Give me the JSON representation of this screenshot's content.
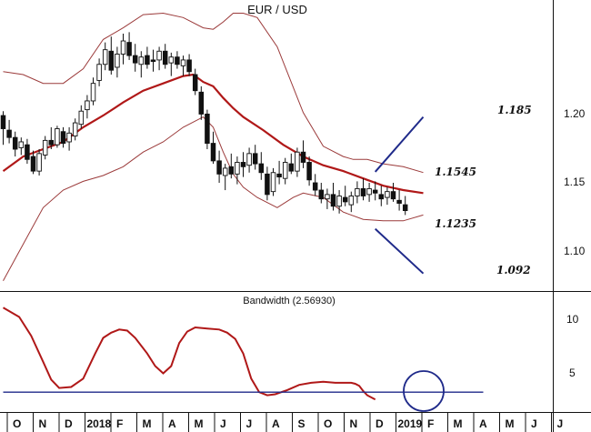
{
  "chart_data": [
    {
      "type": "candlestick",
      "title": "EUR / USD",
      "y_ticks": [
        "1.20",
        "1.15",
        "1.10"
      ],
      "x_ticks": [
        "O",
        "N",
        "D",
        "2018",
        "F",
        "M",
        "A",
        "M",
        "J",
        "J",
        "A",
        "S",
        "O",
        "N",
        "D",
        "2019",
        "F",
        "M",
        "A",
        "M",
        "J",
        "J"
      ],
      "annotations": [
        "1.185",
        "1.1545",
        "1.1235",
        "1.092"
      ],
      "colors": {
        "moving_average": "#b01818",
        "bands": "#9b3a3a",
        "projection": "#1f2a8a",
        "candle": "#111111"
      },
      "ylim": [
        1.078,
        1.277
      ],
      "bands": {
        "upper": [
          [
            0,
            1.228
          ],
          [
            10,
            1.226
          ],
          [
            20,
            1.22
          ],
          [
            30,
            1.22
          ],
          [
            40,
            1.23
          ],
          [
            50,
            1.25
          ],
          [
            60,
            1.258
          ],
          [
            70,
            1.267
          ],
          [
            80,
            1.268
          ],
          [
            90,
            1.265
          ],
          [
            100,
            1.258
          ],
          [
            105,
            1.257
          ],
          [
            110,
            1.262
          ],
          [
            115,
            1.268
          ],
          [
            120,
            1.268
          ],
          [
            127,
            1.265
          ],
          [
            137,
            1.245
          ],
          [
            150,
            1.2
          ],
          [
            160,
            1.177
          ],
          [
            170,
            1.17
          ],
          [
            175,
            1.168
          ],
          [
            182,
            1.168
          ],
          [
            190,
            1.165
          ],
          [
            200,
            1.163
          ],
          [
            210,
            1.159
          ]
        ],
        "lower": [
          [
            0,
            1.085
          ],
          [
            10,
            1.11
          ],
          [
            20,
            1.135
          ],
          [
            30,
            1.147
          ],
          [
            40,
            1.153
          ],
          [
            50,
            1.157
          ],
          [
            60,
            1.163
          ],
          [
            70,
            1.173
          ],
          [
            80,
            1.18
          ],
          [
            90,
            1.19
          ],
          [
            100,
            1.197
          ],
          [
            105,
            1.19
          ],
          [
            110,
            1.173
          ],
          [
            115,
            1.158
          ],
          [
            120,
            1.149
          ],
          [
            127,
            1.142
          ],
          [
            137,
            1.135
          ],
          [
            145,
            1.142
          ],
          [
            150,
            1.145
          ],
          [
            160,
            1.142
          ],
          [
            170,
            1.132
          ],
          [
            180,
            1.127
          ],
          [
            190,
            1.126
          ],
          [
            200,
            1.126
          ],
          [
            210,
            1.13
          ]
        ],
        "middle": [
          [
            0,
            1.16
          ],
          [
            10,
            1.17
          ],
          [
            20,
            1.175
          ],
          [
            30,
            1.18
          ],
          [
            40,
            1.19
          ],
          [
            50,
            1.198
          ],
          [
            60,
            1.207
          ],
          [
            70,
            1.215
          ],
          [
            80,
            1.22
          ],
          [
            90,
            1.225
          ],
          [
            95,
            1.226
          ],
          [
            100,
            1.221
          ],
          [
            105,
            1.218
          ],
          [
            110,
            1.21
          ],
          [
            115,
            1.203
          ],
          [
            120,
            1.197
          ],
          [
            130,
            1.188
          ],
          [
            140,
            1.178
          ],
          [
            150,
            1.17
          ],
          [
            160,
            1.164
          ],
          [
            170,
            1.16
          ],
          [
            180,
            1.155
          ],
          [
            190,
            1.15
          ],
          [
            200,
            1.147
          ],
          [
            210,
            1.145
          ]
        ]
      },
      "candles": [
        [
          0,
          1.198,
          1.201,
          1.178,
          1.189
        ],
        [
          3,
          1.188,
          1.195,
          1.179,
          1.183
        ],
        [
          6,
          1.183,
          1.187,
          1.17,
          1.175
        ],
        [
          9,
          1.176,
          1.183,
          1.171,
          1.18
        ],
        [
          12,
          1.178,
          1.182,
          1.165,
          1.168
        ],
        [
          15,
          1.17,
          1.174,
          1.158,
          1.16
        ],
        [
          18,
          1.16,
          1.175,
          1.157,
          1.172
        ],
        [
          21,
          1.171,
          1.184,
          1.168,
          1.181
        ],
        [
          24,
          1.181,
          1.19,
          1.175,
          1.178
        ],
        [
          27,
          1.178,
          1.191,
          1.176,
          1.189
        ],
        [
          30,
          1.187,
          1.19,
          1.176,
          1.179
        ],
        [
          33,
          1.18,
          1.19,
          1.174,
          1.186
        ],
        [
          36,
          1.184,
          1.196,
          1.181,
          1.193
        ],
        [
          39,
          1.192,
          1.205,
          1.189,
          1.201
        ],
        [
          42,
          1.202,
          1.212,
          1.196,
          1.208
        ],
        [
          45,
          1.208,
          1.224,
          1.205,
          1.22
        ],
        [
          48,
          1.222,
          1.237,
          1.218,
          1.233
        ],
        [
          51,
          1.233,
          1.248,
          1.229,
          1.243
        ],
        [
          54,
          1.242,
          1.252,
          1.226,
          1.229
        ],
        [
          57,
          1.231,
          1.245,
          1.224,
          1.24
        ],
        [
          60,
          1.24,
          1.254,
          1.233,
          1.249
        ],
        [
          63,
          1.248,
          1.255,
          1.236,
          1.239
        ],
        [
          66,
          1.239,
          1.247,
          1.228,
          1.234
        ],
        [
          69,
          1.233,
          1.242,
          1.224,
          1.238
        ],
        [
          72,
          1.239,
          1.245,
          1.23,
          1.233
        ],
        [
          75,
          1.236,
          1.243,
          1.228,
          1.235
        ],
        [
          78,
          1.236,
          1.245,
          1.229,
          1.242
        ],
        [
          81,
          1.242,
          1.247,
          1.23,
          1.233
        ],
        [
          84,
          1.234,
          1.241,
          1.225,
          1.238
        ],
        [
          87,
          1.238,
          1.242,
          1.23,
          1.233
        ],
        [
          90,
          1.232,
          1.239,
          1.225,
          1.236
        ],
        [
          93,
          1.236,
          1.24,
          1.225,
          1.228
        ],
        [
          96,
          1.226,
          1.23,
          1.212,
          1.215
        ],
        [
          99,
          1.214,
          1.218,
          1.195,
          1.199
        ],
        [
          102,
          1.199,
          1.202,
          1.175,
          1.179
        ],
        [
          105,
          1.179,
          1.187,
          1.165,
          1.167
        ],
        [
          108,
          1.167,
          1.174,
          1.152,
          1.158
        ],
        [
          111,
          1.157,
          1.165,
          1.147,
          1.162
        ],
        [
          114,
          1.163,
          1.172,
          1.155,
          1.158
        ],
        [
          117,
          1.158,
          1.17,
          1.151,
          1.166
        ],
        [
          120,
          1.166,
          1.173,
          1.156,
          1.163
        ],
        [
          123,
          1.164,
          1.176,
          1.159,
          1.172
        ],
        [
          126,
          1.172,
          1.178,
          1.161,
          1.165
        ],
        [
          129,
          1.165,
          1.173,
          1.154,
          1.159
        ],
        [
          132,
          1.158,
          1.163,
          1.14,
          1.144
        ],
        [
          135,
          1.146,
          1.162,
          1.143,
          1.159
        ],
        [
          138,
          1.158,
          1.167,
          1.151,
          1.156
        ],
        [
          141,
          1.155,
          1.169,
          1.151,
          1.166
        ],
        [
          144,
          1.165,
          1.172,
          1.158,
          1.16
        ],
        [
          147,
          1.16,
          1.176,
          1.156,
          1.173
        ],
        [
          150,
          1.173,
          1.181,
          1.162,
          1.166
        ],
        [
          153,
          1.166,
          1.17,
          1.15,
          1.154
        ],
        [
          156,
          1.152,
          1.158,
          1.143,
          1.147
        ],
        [
          159,
          1.147,
          1.152,
          1.138,
          1.141
        ],
        [
          162,
          1.141,
          1.148,
          1.134,
          1.144
        ],
        [
          165,
          1.144,
          1.152,
          1.133,
          1.136
        ],
        [
          168,
          1.136,
          1.147,
          1.131,
          1.143
        ],
        [
          171,
          1.142,
          1.15,
          1.136,
          1.139
        ],
        [
          174,
          1.137,
          1.146,
          1.132,
          1.143
        ],
        [
          177,
          1.143,
          1.153,
          1.138,
          1.148
        ],
        [
          180,
          1.148,
          1.155,
          1.14,
          1.143
        ],
        [
          183,
          1.144,
          1.152,
          1.139,
          1.148
        ],
        [
          186,
          1.147,
          1.153,
          1.14,
          1.145
        ],
        [
          189,
          1.144,
          1.15,
          1.136,
          1.141
        ],
        [
          192,
          1.142,
          1.149,
          1.137,
          1.146
        ],
        [
          195,
          1.146,
          1.152,
          1.139,
          1.141
        ],
        [
          198,
          1.14,
          1.147,
          1.133,
          1.138
        ],
        [
          201,
          1.137,
          1.143,
          1.13,
          1.133
        ]
      ],
      "projection_lines": [
        [
          [
            186,
            1.1595
          ],
          [
            210,
            1.197
          ]
        ],
        [
          [
            186,
            1.1205
          ],
          [
            210,
            1.09
          ]
        ]
      ]
    },
    {
      "type": "line",
      "title": "Bandwidth (2.56930)",
      "y_ticks": [
        "10",
        "5"
      ],
      "ylim": [
        1.4,
        12.9
      ],
      "series": [
        {
          "color": "#b01818",
          "values": [
            [
              0,
              11.4
            ],
            [
              8,
              10.5
            ],
            [
              14,
              8.7
            ],
            [
              20,
              6.2
            ],
            [
              24,
              4.5
            ],
            [
              28,
              3.7
            ],
            [
              34,
              3.8
            ],
            [
              40,
              4.6
            ],
            [
              46,
              7.0
            ],
            [
              50,
              8.5
            ],
            [
              54,
              9.0
            ],
            [
              58,
              9.3
            ],
            [
              62,
              9.2
            ],
            [
              66,
              8.5
            ],
            [
              72,
              7.0
            ],
            [
              76,
              5.8
            ],
            [
              80,
              5.1
            ],
            [
              84,
              5.8
            ],
            [
              88,
              8.0
            ],
            [
              92,
              9.1
            ],
            [
              96,
              9.5
            ],
            [
              102,
              9.4
            ],
            [
              108,
              9.3
            ],
            [
              112,
              9.0
            ],
            [
              116,
              8.4
            ],
            [
              120,
              7.0
            ],
            [
              124,
              4.6
            ],
            [
              128,
              3.3
            ],
            [
              132,
              3.0
            ],
            [
              136,
              3.1
            ],
            [
              142,
              3.5
            ],
            [
              148,
              4.0
            ],
            [
              154,
              4.2
            ],
            [
              160,
              4.3
            ],
            [
              166,
              4.2
            ],
            [
              170,
              4.2
            ],
            [
              174,
              4.2
            ],
            [
              176,
              4.1
            ],
            [
              178,
              3.9
            ],
            [
              180,
              3.4
            ],
            [
              182,
              3.0
            ],
            [
              186,
              2.6
            ]
          ]
        },
        {
          "color": "#1f2a8a",
          "values": [
            [
              0,
              3.3
            ],
            [
              240,
              3.3
            ]
          ]
        }
      ]
    }
  ]
}
